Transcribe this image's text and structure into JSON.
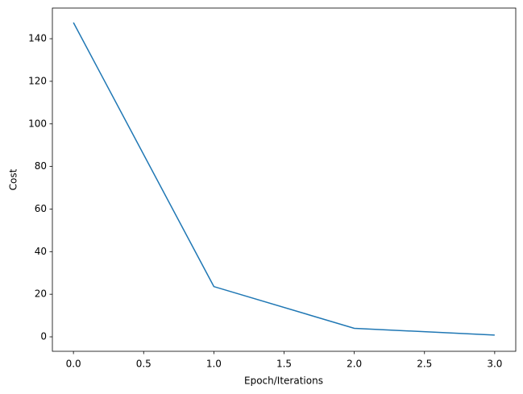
{
  "chart_data": {
    "type": "line",
    "x_label": "Epoch/Iterations",
    "y_label": "Cost",
    "x": [
      0,
      1,
      2,
      3
    ],
    "series": [
      {
        "name": "cost",
        "color": "#1f77b4",
        "values": [
          147.6,
          23.6,
          4.0,
          0.8
        ]
      }
    ],
    "xlim": [
      -0.15,
      3.15
    ],
    "xticks": [
      {
        "value": 0,
        "label": "0.0"
      },
      {
        "value": 0.5,
        "label": "0.5"
      },
      {
        "value": 1,
        "label": "1.0"
      },
      {
        "value": 1.5,
        "label": "1.5"
      },
      {
        "value": 2,
        "label": "2.0"
      },
      {
        "value": 2.5,
        "label": "2.5"
      },
      {
        "value": 3,
        "label": "3.0"
      }
    ],
    "ylim": [
      -6.8,
      154.4
    ],
    "yticks": [
      0,
      20,
      40,
      60,
      80,
      100,
      120,
      140
    ]
  }
}
